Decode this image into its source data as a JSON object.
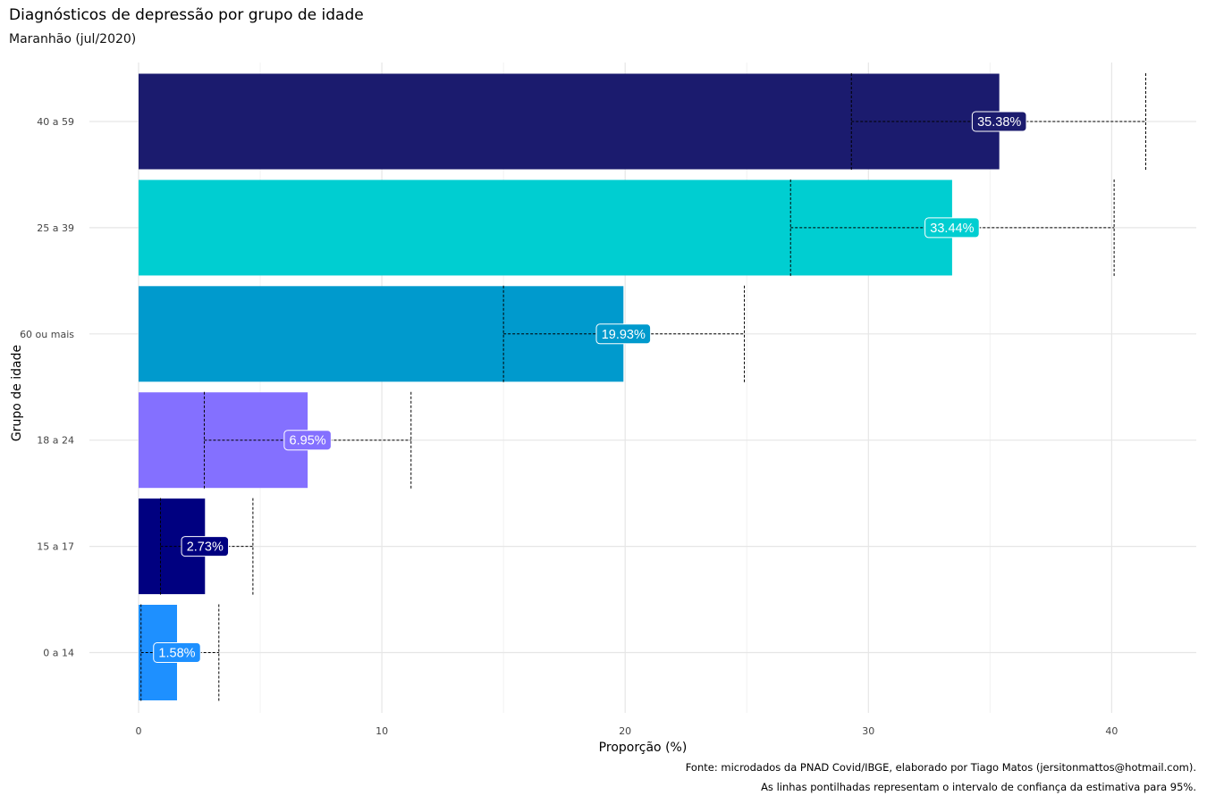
{
  "chart_data": {
    "type": "bar",
    "orientation": "horizontal",
    "title": "Diagnósticos de depressão por grupo de idade",
    "subtitle": "Maranhão (jul/2020)",
    "xlabel": "Proporção (%)",
    "ylabel": "Grupo de idade",
    "xlim": [
      0,
      43
    ],
    "xticks": [
      "0",
      "10",
      "20",
      "30",
      "40"
    ],
    "grid": true,
    "legend": "none",
    "categories": [
      "40 a 59",
      "25 a 39",
      "60 ou mais",
      "18 a 24",
      "15 a 17",
      "0 a 14"
    ],
    "values": [
      35.38,
      33.44,
      19.93,
      6.95,
      2.73,
      1.58
    ],
    "ci_lower": [
      29.3,
      26.8,
      15.0,
      2.7,
      0.9,
      0.1
    ],
    "ci_upper": [
      41.4,
      40.1,
      24.9,
      11.2,
      4.7,
      3.3
    ],
    "labels": [
      "35.38%",
      "33.44%",
      "19.93%",
      "6.95%",
      "2.73%",
      "1.58%"
    ],
    "colors": [
      "#1B1B6E",
      "#00CED1",
      "#009ACD",
      "#8470FF",
      "#000080",
      "#1E90FF"
    ],
    "caption": [
      "Fonte: microdados da PNAD Covid/IBGE, elaborado por Tiago Matos (jersitonmattos@hotmail.com).",
      "As linhas pontilhadas representam o intervalo de confiança da estimativa para 95%."
    ]
  }
}
